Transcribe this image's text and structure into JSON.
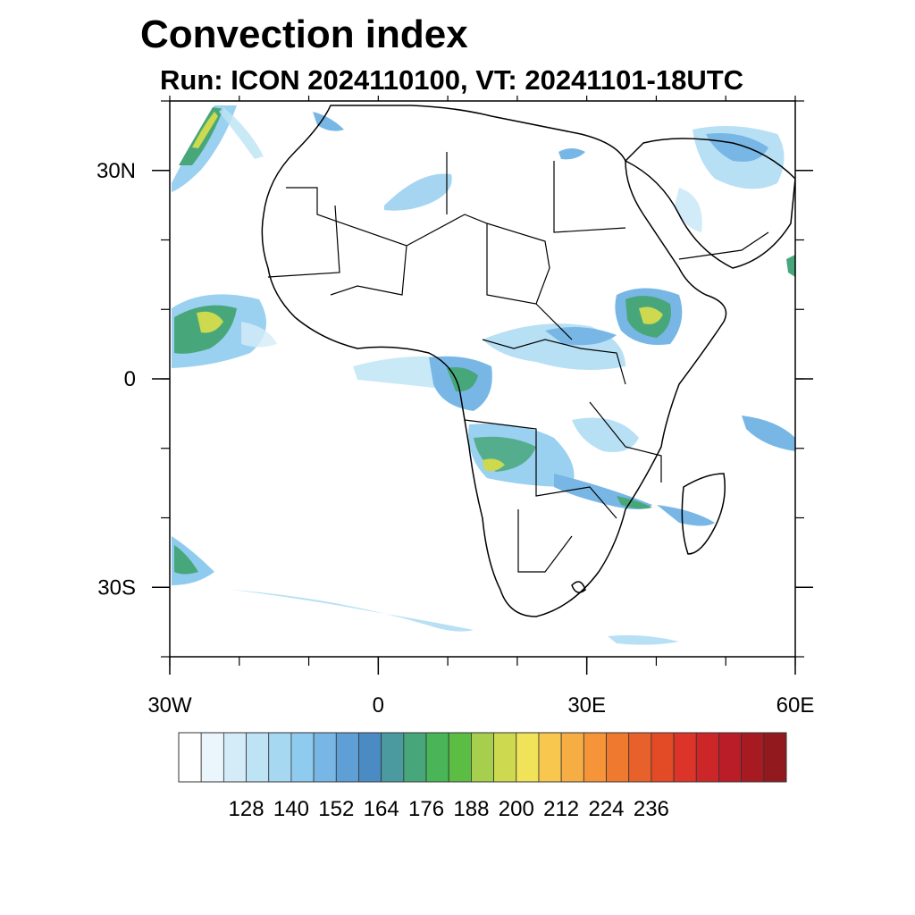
{
  "title": "Convection index",
  "subtitle": "Run: ICON 2024110100,  VT: 20241101-18UTC",
  "map": {
    "lat_labels": [
      "30N",
      "0",
      "30S"
    ],
    "lon_labels": [
      "30W",
      "0",
      "30E",
      "60E"
    ],
    "lat_values": [
      30,
      0,
      -30
    ],
    "lon_values": [
      -30,
      0,
      30,
      60
    ],
    "extent": {
      "lon_min": -30,
      "lon_max": 60,
      "lat_min": -40,
      "lat_max": 40
    }
  },
  "colorbar": {
    "colors": [
      "#ffffff",
      "#eaf6fc",
      "#d4ecf8",
      "#bde3f5",
      "#a6d8f2",
      "#8fcbee",
      "#78b7e5",
      "#5e9fd6",
      "#4b8bc4",
      "#4a9aa0",
      "#48a77a",
      "#48b556",
      "#5cbd45",
      "#a6cf4e",
      "#cdd94e",
      "#f0e35a",
      "#f8c84e",
      "#f5ad44",
      "#f59438",
      "#ef7a2f",
      "#e8602a",
      "#e34a26",
      "#dc3428",
      "#cc2629",
      "#bb1d28",
      "#a81a22",
      "#921a1e"
    ],
    "labels": [
      "128",
      "140",
      "152",
      "164",
      "176",
      "188",
      "200",
      "212",
      "224",
      "236"
    ]
  }
}
